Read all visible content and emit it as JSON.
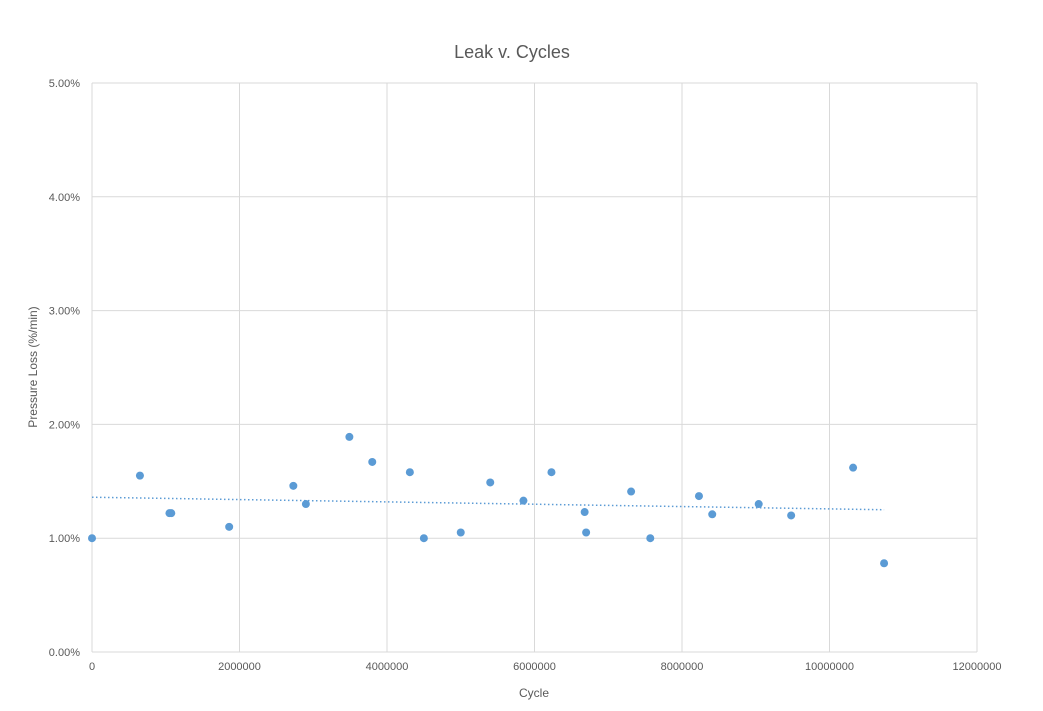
{
  "chart_data": {
    "type": "scatter",
    "title": "Leak v. Cycles",
    "xlabel": "Cycle",
    "ylabel": "Pressure Loss (%/min)",
    "xlim": [
      0,
      12000000
    ],
    "ylim": [
      0,
      0.05
    ],
    "x_ticks": [
      0,
      2000000,
      4000000,
      6000000,
      8000000,
      10000000,
      12000000
    ],
    "x_tick_labels": [
      "0",
      "2000000",
      "4000000",
      "6000000",
      "8000000",
      "10000000",
      "12000000"
    ],
    "y_ticks": [
      0,
      0.01,
      0.02,
      0.03,
      0.04,
      0.05
    ],
    "y_tick_labels": [
      "0.00%",
      "1.00%",
      "2.00%",
      "3.00%",
      "4.00%",
      "5.00%"
    ],
    "grid": true,
    "legend": "none",
    "colors": {
      "points": "#5b9bd5",
      "trendline": "#5b9bd5",
      "grid": "#d9d9d9",
      "text": "#595959"
    },
    "series": [
      {
        "points": [
          [
            0,
            0.01
          ],
          [
            650000,
            0.0155
          ],
          [
            1050000,
            0.0122
          ],
          [
            1075000,
            0.0122
          ],
          [
            1860000,
            0.011
          ],
          [
            2730000,
            0.0146
          ],
          [
            2900000,
            0.013
          ],
          [
            3490000,
            0.0189
          ],
          [
            3800000,
            0.0167
          ],
          [
            4310000,
            0.0158
          ],
          [
            4500000,
            0.01
          ],
          [
            5000000,
            0.0105
          ],
          [
            5400000,
            0.0149
          ],
          [
            5850000,
            0.0133
          ],
          [
            6230000,
            0.0158
          ],
          [
            6680000,
            0.0123
          ],
          [
            6700000,
            0.0105
          ],
          [
            7310000,
            0.0141
          ],
          [
            7570000,
            0.01
          ],
          [
            8230000,
            0.0137
          ],
          [
            8410000,
            0.0121
          ],
          [
            9040000,
            0.013
          ],
          [
            9480000,
            0.012
          ],
          [
            10320000,
            0.0162
          ],
          [
            10740000,
            0.0078
          ]
        ],
        "trendline": {
          "type": "linear",
          "from": [
            0,
            0.0136
          ],
          "to": [
            10740000,
            0.0125
          ]
        }
      }
    ]
  }
}
